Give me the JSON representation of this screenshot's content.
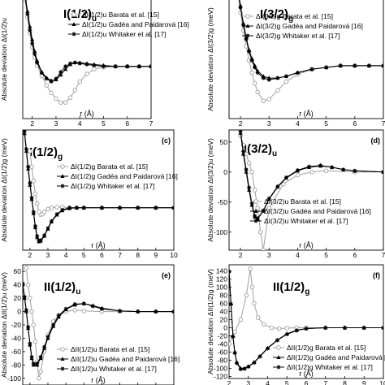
{
  "figure": {
    "colors": {
      "barata": "#a0a0a0",
      "gadea": "#000000",
      "whitaker": "#000000",
      "axis": "#000000"
    }
  },
  "chart_data": [
    {
      "type": "line",
      "panel_label": "",
      "title_main": "I(1/2)",
      "title_sub": "u",
      "xlabel": "r (Å)",
      "ylabel": "Absolute deviation ΔI(1/2)u",
      "xlim": [
        1.6,
        7
      ],
      "ylim": [
        -55,
        75
      ],
      "xticks": [
        2,
        3,
        4,
        5,
        6,
        7
      ],
      "yticks": [],
      "legend_placement": "right",
      "series": [
        {
          "name": "ΔI(1/2)u Barata et al. [15]",
          "marker": "circle",
          "color": "#a0a0a0",
          "x": [
            1.7,
            1.8,
            1.9,
            2.0,
            2.1,
            2.2,
            2.4,
            2.6,
            2.8,
            3.0,
            3.2,
            3.4,
            3.6,
            3.8,
            4.0,
            4.3,
            4.6,
            5.0,
            5.5,
            6.0,
            6.5,
            7.0
          ],
          "y": [
            70,
            52,
            35,
            20,
            9,
            1,
            -10,
            -20,
            -28,
            -34,
            -38,
            -38,
            -33,
            -25,
            -16,
            -8,
            -3,
            -1,
            0,
            0,
            0,
            0
          ]
        },
        {
          "name": "ΔI(1/2)u Gadéa and Paidarová [16]",
          "marker": "triangle",
          "color": "#000000",
          "x": [
            1.7,
            1.8,
            1.9,
            2.0,
            2.1,
            2.2,
            2.4,
            2.6,
            2.8,
            3.0,
            3.2,
            3.4,
            3.6,
            3.8,
            4.0,
            4.3,
            4.6,
            5.0,
            5.5,
            6.0,
            6.5,
            7.0
          ],
          "y": [
            75,
            58,
            42,
            28,
            16,
            6,
            -6,
            -12,
            -15,
            -14,
            -9,
            -3,
            2,
            4,
            4,
            3,
            2,
            1,
            0,
            0,
            0,
            0
          ]
        },
        {
          "name": "ΔI(1/2)u Whitaker et al. [17]",
          "marker": "star",
          "color": "#000000",
          "x": [
            1.7,
            1.8,
            1.9,
            2.0,
            2.1,
            2.2,
            2.4,
            2.6,
            2.8,
            3.0,
            3.2,
            3.4,
            3.6,
            3.8,
            4.0,
            4.3,
            4.6,
            5.0,
            5.5,
            6.0,
            6.5,
            7.0
          ],
          "y": [
            72,
            55,
            38,
            24,
            13,
            4,
            -7,
            -13,
            -16,
            -13,
            -6,
            0,
            3,
            4,
            3,
            2,
            1,
            0,
            0,
            0,
            0,
            0
          ]
        }
      ]
    },
    {
      "type": "line",
      "panel_label": "",
      "title_main": "I(3/2)",
      "title_sub": "g",
      "xlabel": "r (Å)",
      "ylabel": "Absolute deviation ΔI(3/2)g (meV)",
      "xlim": [
        1.6,
        7
      ],
      "ylim": [
        -30,
        40
      ],
      "xticks": [
        2,
        3,
        4,
        5,
        6,
        7
      ],
      "yticks": [],
      "legend_placement": "right",
      "series": [
        {
          "name": "ΔI(3/2)g Barata et al. [15]",
          "marker": "circle",
          "color": "#a0a0a0",
          "x": [
            1.9,
            2.0,
            2.1,
            2.2,
            2.3,
            2.4,
            2.5,
            2.6,
            2.8,
            3.0,
            3.3,
            3.6,
            4.0,
            4.5,
            5.0,
            5.5,
            6.0,
            6.5,
            7.0
          ],
          "y": [
            42,
            30,
            20,
            11,
            3,
            -4,
            -10,
            -15,
            -20,
            -19,
            -14,
            -9,
            -5,
            -2,
            -1,
            0,
            0,
            0,
            0
          ]
        },
        {
          "name": "ΔI(3/2)g Gadéa and Paidarová [16]",
          "marker": "triangle",
          "color": "#000000",
          "x": [
            1.9,
            2.0,
            2.1,
            2.2,
            2.3,
            2.4,
            2.5,
            2.6,
            2.8,
            3.0,
            3.3,
            3.6,
            4.0,
            4.5,
            5.0,
            5.5,
            6.0,
            6.5,
            7.0
          ],
          "y": [
            45,
            34,
            24,
            16,
            9,
            4,
            0,
            -3,
            -6,
            -7,
            -7,
            -6,
            -4,
            -2,
            -1,
            0,
            0,
            0,
            0
          ]
        },
        {
          "name": "ΔI(3/2)g Whitaker et al. [17]",
          "marker": "star",
          "color": "#000000",
          "x": [
            1.9,
            2.0,
            2.1,
            2.2,
            2.3,
            2.4,
            2.5,
            2.6,
            2.8,
            3.0,
            3.3,
            3.6,
            4.0,
            4.5,
            5.0,
            5.5,
            6.0,
            6.5,
            7.0
          ],
          "y": [
            44,
            33,
            23,
            15,
            8,
            3,
            -1,
            -4,
            -7,
            -8,
            -7,
            -6,
            -4,
            -2,
            -1,
            0,
            0,
            0,
            0
          ]
        }
      ]
    },
    {
      "type": "line",
      "panel_label": "(c)",
      "title_main": "I(1/2)",
      "title_sub": "g",
      "xlabel": "r (Å)",
      "ylabel": "Absolute deviation ΔI(1/2)g (meV)",
      "xlim": [
        1.6,
        10
      ],
      "ylim": [
        -60,
        110
      ],
      "xticks": [
        2,
        3,
        4,
        5,
        6,
        7,
        8,
        9,
        10
      ],
      "yticks": [],
      "legend_placement": "right",
      "series": [
        {
          "name": "ΔI(1/2)g Barata et al. [15]",
          "marker": "circle",
          "color": "#a0a0a0",
          "x": [
            2.0,
            2.1,
            2.2,
            2.3,
            2.4,
            2.5,
            2.6,
            2.7,
            2.8,
            3.0,
            3.2,
            3.5,
            3.8,
            4.2,
            4.6,
            5.0,
            6.0,
            7.0,
            8.0,
            9.0,
            10.0
          ],
          "y": [
            80,
            58,
            38,
            20,
            6,
            -6,
            -10,
            -9,
            -6,
            -2,
            0,
            1,
            1,
            0,
            0,
            0,
            0,
            0,
            0,
            0,
            0
          ]
        },
        {
          "name": "ΔI(1/2)g Gadéa and Paidarová [16]",
          "marker": "triangle",
          "color": "#000000",
          "x": [
            1.7,
            1.8,
            1.9,
            2.0,
            2.1,
            2.2,
            2.3,
            2.4,
            2.5,
            2.6,
            2.8,
            3.0,
            3.2,
            3.5,
            3.8,
            4.2,
            4.6,
            5.0,
            6.0,
            7.0,
            8.0,
            9.0,
            10.0
          ],
          "y": [
            105,
            80,
            55,
            32,
            12,
            -8,
            -28,
            -42,
            -48,
            -47,
            -40,
            -30,
            -20,
            -10,
            -4,
            -1,
            0,
            0,
            0,
            0,
            0,
            0,
            0
          ]
        },
        {
          "name": "ΔI(1/2)g Whitaker et al. [17]",
          "marker": "star",
          "color": "#000000",
          "x": [
            1.7,
            1.8,
            1.9,
            2.0,
            2.1,
            2.2,
            2.3,
            2.4,
            2.5,
            2.6,
            2.8,
            3.0,
            3.2,
            3.5,
            3.8,
            4.2,
            4.6,
            5.0,
            6.0,
            7.0,
            8.0,
            9.0,
            10.0
          ],
          "y": [
            108,
            83,
            58,
            35,
            14,
            -6,
            -26,
            -40,
            -47,
            -46,
            -39,
            -29,
            -19,
            -9,
            -3,
            0,
            0,
            0,
            0,
            0,
            0,
            0,
            0
          ]
        }
      ]
    },
    {
      "type": "line",
      "panel_label": "(d)",
      "title_main": "I(3/2)",
      "title_sub": "u",
      "xlabel": "r (Å)",
      "ylabel": "Absolute deviation ΔI(3/2)u (meV)",
      "xlim": [
        1.6,
        7
      ],
      "ylim": [
        -130,
        70
      ],
      "xticks": [
        2,
        3,
        4,
        5,
        6,
        7
      ],
      "yticks": [
        -100,
        -50,
        0,
        50
      ],
      "legend_placement": "center-right",
      "series": [
        {
          "name": "ΔI(3/2)u Barata et al. [15]",
          "marker": "circle",
          "color": "#a0a0a0",
          "x": [
            2.0,
            2.1,
            2.2,
            2.3,
            2.4,
            2.5,
            2.6,
            2.7,
            2.8,
            3.0,
            3.5,
            4.0,
            4.5,
            5.0,
            6.0,
            7.0
          ],
          "y": [
            60,
            45,
            30,
            15,
            0,
            -30,
            -60,
            -100,
            -130,
            -60,
            -20,
            -5,
            0,
            2,
            0,
            0
          ]
        },
        {
          "name": "ΔI(3/2)u Gadéa and Paidarová [16]",
          "marker": "triangle",
          "color": "#000000",
          "x": [
            2.0,
            2.1,
            2.2,
            2.3,
            2.4,
            2.5,
            2.6,
            2.8,
            3.0,
            3.3,
            3.6,
            4.0,
            4.4,
            4.8,
            5.2,
            5.6,
            6.0,
            7.0
          ],
          "y": [
            65,
            30,
            0,
            -30,
            -55,
            -75,
            -78,
            -65,
            -45,
            -25,
            -10,
            2,
            8,
            10,
            8,
            4,
            2,
            0
          ]
        },
        {
          "name": "ΔI(3/2)u Whitaker et al. [17]",
          "marker": "star",
          "color": "#000000",
          "x": [
            2.0,
            2.1,
            2.2,
            2.3,
            2.4,
            2.5,
            2.6,
            2.8,
            3.0,
            3.3,
            3.6,
            4.0,
            4.4,
            4.8,
            5.2,
            5.6,
            6.0,
            7.0
          ],
          "y": [
            68,
            34,
            4,
            -26,
            -52,
            -73,
            -77,
            -64,
            -44,
            -24,
            -9,
            3,
            9,
            11,
            8,
            4,
            2,
            0
          ]
        }
      ]
    },
    {
      "type": "line",
      "panel_label": "(e)",
      "title_main": "II(1/2)",
      "title_sub": "u",
      "xlabel": "r (Å)",
      "ylabel": "Absolute deviation ΔII(1/2)u (meV)",
      "xlim": [
        1.6,
        10
      ],
      "ylim": [
        -110,
        70
      ],
      "xticks": [
        2,
        3,
        4,
        5,
        6,
        7,
        8,
        9,
        10
      ],
      "yticks": [
        -100,
        -80,
        -60,
        -40,
        -20,
        0,
        20,
        40,
        60
      ],
      "legend_placement": "bottom-right",
      "series": [
        {
          "name": "ΔII(1/2)u Barata et al. [15]",
          "marker": "circle",
          "color": "#a0a0a0",
          "x": [
            1.8,
            1.9,
            2.0,
            2.1,
            2.2,
            2.3,
            2.4,
            2.5,
            2.6,
            2.8,
            3.0,
            3.3,
            3.6,
            4.0,
            4.5,
            5.0,
            6.0,
            7.0,
            8.0,
            9.0,
            10.0
          ],
          "y": [
            65,
            40,
            20,
            0,
            -20,
            -45,
            -75,
            -100,
            -90,
            -60,
            -35,
            -15,
            -5,
            0,
            2,
            1,
            0,
            0,
            0,
            0,
            0
          ]
        },
        {
          "name": "ΔII(1/2)u Gadéa and Paidarová [16]",
          "marker": "triangle",
          "color": "#000000",
          "x": [
            1.6,
            1.7,
            1.8,
            1.9,
            2.0,
            2.1,
            2.2,
            2.4,
            2.6,
            2.8,
            3.0,
            3.3,
            3.6,
            4.0,
            4.5,
            5.0,
            5.5,
            6.0,
            7.0,
            8.0,
            9.0,
            10.0
          ],
          "y": [
            40,
            20,
            0,
            -25,
            -50,
            -70,
            -80,
            -80,
            -70,
            -55,
            -40,
            -22,
            -8,
            3,
            10,
            12,
            9,
            5,
            1,
            0,
            0,
            0
          ]
        },
        {
          "name": "ΔII(1/2)u Whitaker et al. [17]",
          "marker": "star",
          "color": "#000000",
          "x": [
            1.6,
            1.7,
            1.8,
            1.9,
            2.0,
            2.1,
            2.2,
            2.4,
            2.6,
            2.8,
            3.0,
            3.3,
            3.6,
            4.0,
            4.5,
            5.0,
            5.5,
            6.0,
            7.0,
            8.0,
            9.0,
            10.0
          ],
          "y": [
            42,
            22,
            2,
            -23,
            -48,
            -68,
            -78,
            -78,
            -68,
            -53,
            -38,
            -20,
            -6,
            4,
            11,
            12,
            8,
            4,
            1,
            0,
            0,
            0
          ]
        }
      ]
    },
    {
      "type": "line",
      "panel_label": "(f)",
      "title_main": "II(1/2)",
      "title_sub": "g",
      "xlabel": "r (Å)",
      "ylabel": "Absolute deviation ΔII(1/2)g (meV)",
      "xlim": [
        2,
        10
      ],
      "ylim": [
        -125,
        155
      ],
      "xticks": [
        2,
        3,
        4,
        5,
        6,
        7,
        8,
        9,
        10
      ],
      "yticks": [
        -120,
        -100,
        -80,
        -60,
        -40,
        -20,
        0,
        20,
        40,
        60,
        80,
        100,
        120,
        140
      ],
      "legend_placement": "bottom-right",
      "series": [
        {
          "name": "ΔII(1/2)g Barata et al. [15]",
          "marker": "circle",
          "color": "#a0a0a0",
          "x": [
            2.0,
            2.3,
            2.6,
            2.9,
            3.1,
            3.2,
            3.3,
            3.5,
            3.8,
            4.2,
            4.6,
            5.0,
            5.5,
            6.0,
            7.0,
            8.0,
            9.0,
            10.0
          ],
          "y": [
            -40,
            -10,
            20,
            80,
            145,
            100,
            60,
            25,
            8,
            0,
            -2,
            -1,
            0,
            0,
            0,
            0,
            0,
            0
          ]
        },
        {
          "name": "ΔII(1/2)g Gadéa and Paidarová [16]",
          "marker": "triangle",
          "color": "#000000",
          "x": [
            2.0,
            2.1,
            2.2,
            2.3,
            2.4,
            2.6,
            2.8,
            3.0,
            3.3,
            3.6,
            4.0,
            4.5,
            5.0,
            5.5,
            6.0,
            7.0,
            8.0,
            9.0,
            10.0
          ],
          "y": [
            140,
            60,
            -20,
            -60,
            -85,
            -100,
            -100,
            -95,
            -85,
            -70,
            -50,
            -30,
            -15,
            -6,
            -2,
            0,
            0,
            0,
            0
          ]
        },
        {
          "name": "ΔII(1/2)g Whitaker et al. [17]",
          "marker": "star",
          "color": "#000000",
          "x": [
            2.0,
            2.1,
            2.2,
            2.3,
            2.4,
            2.6,
            2.8,
            3.0,
            3.3,
            3.6,
            4.0,
            4.5,
            5.0,
            5.5,
            6.0,
            7.0,
            8.0,
            9.0,
            10.0
          ],
          "y": [
            138,
            58,
            -22,
            -62,
            -87,
            -102,
            -101,
            -96,
            -86,
            -71,
            -51,
            -31,
            -16,
            -7,
            -2,
            0,
            0,
            0,
            0
          ]
        }
      ]
    }
  ]
}
